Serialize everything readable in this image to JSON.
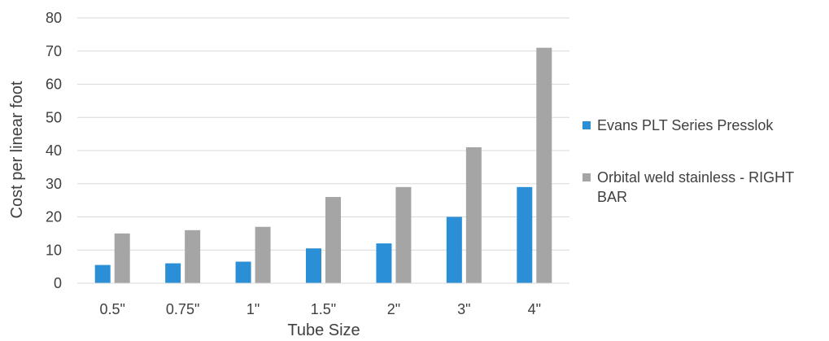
{
  "chart_data": {
    "type": "bar",
    "title": "",
    "xlabel": "Tube Size",
    "ylabel": "Cost per linear foot",
    "categories": [
      "0.5\"",
      "0.75\"",
      "1\"",
      "1.5\"",
      "2\"",
      "3\"",
      "4\""
    ],
    "ylim": [
      0,
      80
    ],
    "yticks": [
      "0",
      "10",
      "20",
      "30",
      "40",
      "50",
      "60",
      "70",
      "80"
    ],
    "grid": true,
    "legend_position": "right",
    "series": [
      {
        "name": "Evans PLT Series Presslok",
        "color": "#2a8fd6",
        "values": [
          5.5,
          6,
          6.5,
          10.5,
          12,
          20,
          29
        ]
      },
      {
        "name": "Orbital weld stainless - RIGHT BAR",
        "name_lines": [
          "Orbital weld stainless - RIGHT",
          "BAR"
        ],
        "color": "#a5a5a5",
        "values": [
          15,
          16,
          17,
          26,
          29,
          41,
          71
        ]
      }
    ]
  }
}
